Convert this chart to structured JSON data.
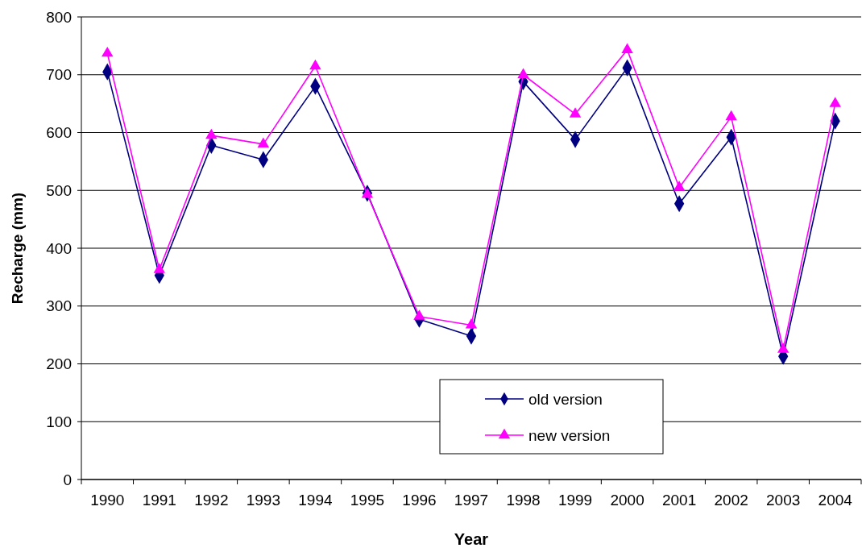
{
  "chart_data": {
    "type": "line",
    "xlabel": "Year",
    "ylabel": "Recharge (mm)",
    "categories": [
      "1990",
      "1991",
      "1992",
      "1993",
      "1994",
      "1995",
      "1996",
      "1997",
      "1998",
      "1999",
      "2000",
      "2001",
      "2002",
      "2003",
      "2004"
    ],
    "series": [
      {
        "name": "old version",
        "color": "#000080",
        "marker": "diamond",
        "values": [
          705,
          353,
          578,
          553,
          680,
          495,
          277,
          248,
          688,
          588,
          712,
          477,
          592,
          213,
          620
        ]
      },
      {
        "name": "new version",
        "color": "#ff00ff",
        "marker": "triangle",
        "values": [
          737,
          363,
          595,
          580,
          715,
          493,
          282,
          267,
          700,
          632,
          743,
          505,
          627,
          225,
          650
        ]
      }
    ],
    "ylim": [
      0,
      800
    ],
    "yticks": [
      0,
      100,
      200,
      300,
      400,
      500,
      600,
      700,
      800
    ],
    "grid": "y",
    "legend": "bottom",
    "line_style": "solid"
  }
}
